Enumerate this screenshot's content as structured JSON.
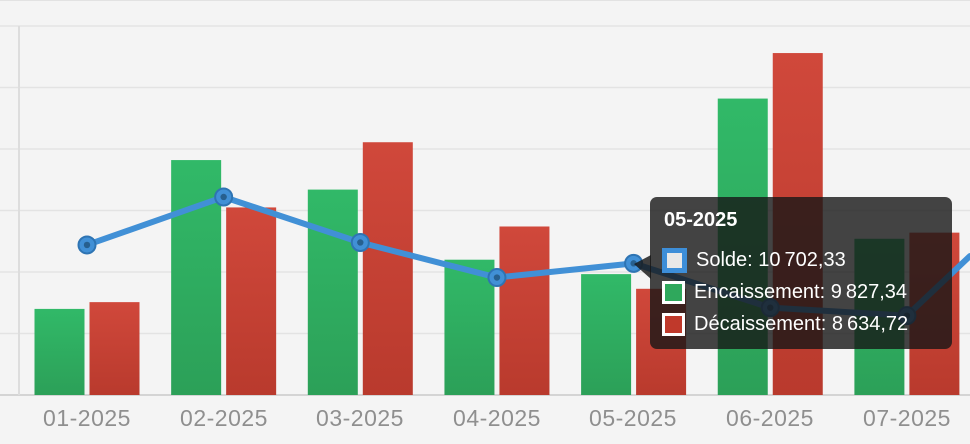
{
  "chart_data": {
    "type": "bar+line",
    "title": "",
    "xlabel": "",
    "ylabel": "",
    "categories": [
      "01-2025",
      "02-2025",
      "03-2025",
      "04-2025",
      "05-2025",
      "06-2025",
      "07-2025"
    ],
    "series": [
      {
        "name": "Solde",
        "type": "line",
        "values": [
          12200,
          16100,
          12400,
          9550,
          10702.33,
          7100,
          6450
        ]
      },
      {
        "name": "Encaissement",
        "type": "bar",
        "values": [
          7000,
          19100,
          16700,
          11000,
          9827.34,
          24100,
          12700
        ]
      },
      {
        "name": "Décaissement",
        "type": "bar",
        "values": [
          7550,
          15250,
          20550,
          13700,
          8634.72,
          27800,
          13200
        ]
      }
    ],
    "ylim": [
      0,
      30000
    ],
    "grid_step": 5000,
    "grid": true,
    "y_tick_labels_visible": false,
    "legend_visible": false,
    "edge_continuation_value": 11300
  },
  "tooltip": {
    "title": "05-2025",
    "rows": [
      {
        "label": "Solde: 10 702,33",
        "swatch_fill": "#e8e8e8",
        "swatch_border": "#3d8ed8"
      },
      {
        "label": "Encaissement: 9 827,34",
        "swatch_fill": "#2fa85c",
        "swatch_border": "#ffffff"
      },
      {
        "label": "Décaissement: 8 634,72",
        "swatch_fill": "#c0392b",
        "swatch_border": "#ffffff"
      }
    ]
  },
  "colors": {
    "background": "#f4f4f4",
    "gridline": "#e3e3e3",
    "axis_line": "#dddddd",
    "baseline": "#d4d4d4",
    "label": "#8f8f8f",
    "line": "#4190d6",
    "marker_border": "#2e74b3",
    "marker_center": "#27608f",
    "bar_series": [
      {
        "name": "Encaissement",
        "color": "#2fae5f",
        "color_top": "#31b968",
        "color_bottom": "#2ca058"
      },
      {
        "name": "Décaissement",
        "color": "#c43a2e",
        "color_top": "#d0483b",
        "color_bottom": "#b93a2d"
      }
    ]
  }
}
